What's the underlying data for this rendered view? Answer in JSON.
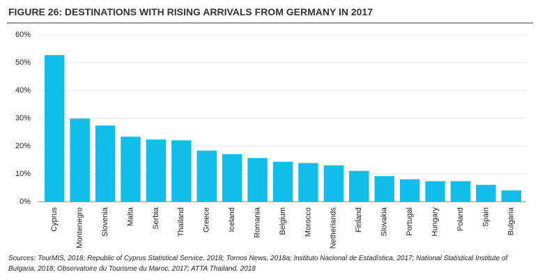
{
  "chart_data": {
    "type": "bar",
    "title": "FIGURE 26: DESTINATIONS WITH RISING ARRIVALS FROM GERMANY IN 2017",
    "categories": [
      "Cyprus",
      "Montenegro",
      "Slovenia",
      "Malta",
      "Serbia",
      "Thailand",
      "Greece",
      "Iceland",
      "Romania",
      "Belgium",
      "Morocco",
      "Netherlands",
      "Finland",
      "Slovakia",
      "Portugal",
      "Hungary",
      "Poland",
      "Spain",
      "Bulgaria"
    ],
    "values": [
      52.7,
      29.9,
      27.4,
      23.4,
      22.4,
      22.1,
      18.4,
      17.1,
      15.7,
      14.4,
      13.9,
      13.1,
      11.1,
      9.2,
      8.1,
      7.4,
      7.4,
      6.1,
      4.1
    ],
    "color": "#13bde9",
    "ylim": [
      0,
      60
    ],
    "yticks": [
      {
        "value": 0,
        "label": "0%"
      },
      {
        "value": 10,
        "label": "10%"
      },
      {
        "value": 20,
        "label": "20%"
      },
      {
        "value": 30,
        "label": "30%"
      },
      {
        "value": 40,
        "label": "40%"
      },
      {
        "value": 50,
        "label": "50%"
      },
      {
        "value": 60,
        "label": "60%"
      }
    ],
    "grid": true,
    "source": "Sources: TourMIS, 2018; Republic of Cyprus Statistical Service, 2018; Tornos News, 2018a; Instituto Nacional de Estadística, 2017; National Statistical Institute of Bulgaria, 2018; Observatoire du Tourisme du Maroc, 2017; ATTA Thailand, 2018"
  }
}
